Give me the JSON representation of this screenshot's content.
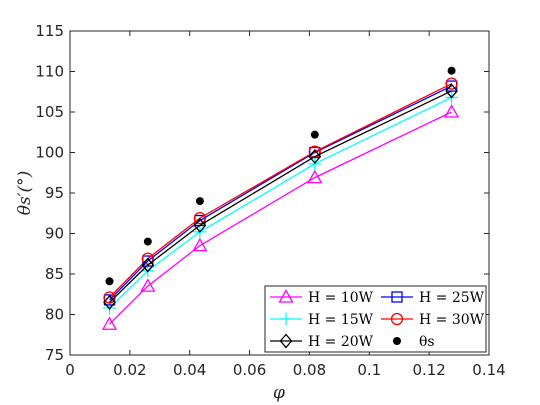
{
  "chart_data": {
    "type": "line",
    "xlabel": "φ",
    "ylabel": "θs′(°)",
    "xlim": [
      0,
      0.14
    ],
    "ylim": [
      75,
      115
    ],
    "xticks": [
      0,
      0.02,
      0.04,
      0.06,
      0.08,
      0.1,
      0.12,
      0.14
    ],
    "xtick_labels": [
      "0",
      "0.02",
      "0.04",
      "0.06",
      "0.08",
      "0.1",
      "0.12",
      "0.14"
    ],
    "yticks": [
      75,
      80,
      85,
      90,
      95,
      100,
      105,
      110,
      115
    ],
    "ytick_labels": [
      "75",
      "80",
      "85",
      "90",
      "95",
      "100",
      "105",
      "110",
      "115"
    ],
    "grid": false,
    "legend_position": "bottom-right",
    "x": [
      0.0132,
      0.026,
      0.0434,
      0.0818,
      0.1275
    ],
    "series": [
      {
        "name": "H = 10W",
        "marker": "triangle",
        "color": "#ff00ff",
        "values": [
          78.8,
          83.5,
          88.5,
          96.9,
          105.0
        ]
      },
      {
        "name": "H = 15W",
        "marker": "plus",
        "color": "#00ffff",
        "values": [
          80.8,
          85.4,
          90.2,
          98.6,
          106.8
        ]
      },
      {
        "name": "H = 20W",
        "marker": "diamond",
        "color": "#000000",
        "values": [
          81.5,
          86.1,
          91.0,
          99.5,
          107.6
        ]
      },
      {
        "name": "H = 25W",
        "marker": "square",
        "color": "#0000ff",
        "values": [
          81.8,
          86.6,
          91.6,
          100.0,
          108.2
        ]
      },
      {
        "name": "H = 30W",
        "marker": "circle",
        "color": "#ff0000",
        "values": [
          82.1,
          86.9,
          91.9,
          100.1,
          108.5
        ]
      },
      {
        "name": "θs",
        "marker": "dot",
        "color": "#000000",
        "line": false,
        "values": [
          84.1,
          89.0,
          94.0,
          102.2,
          110.1
        ]
      }
    ]
  }
}
